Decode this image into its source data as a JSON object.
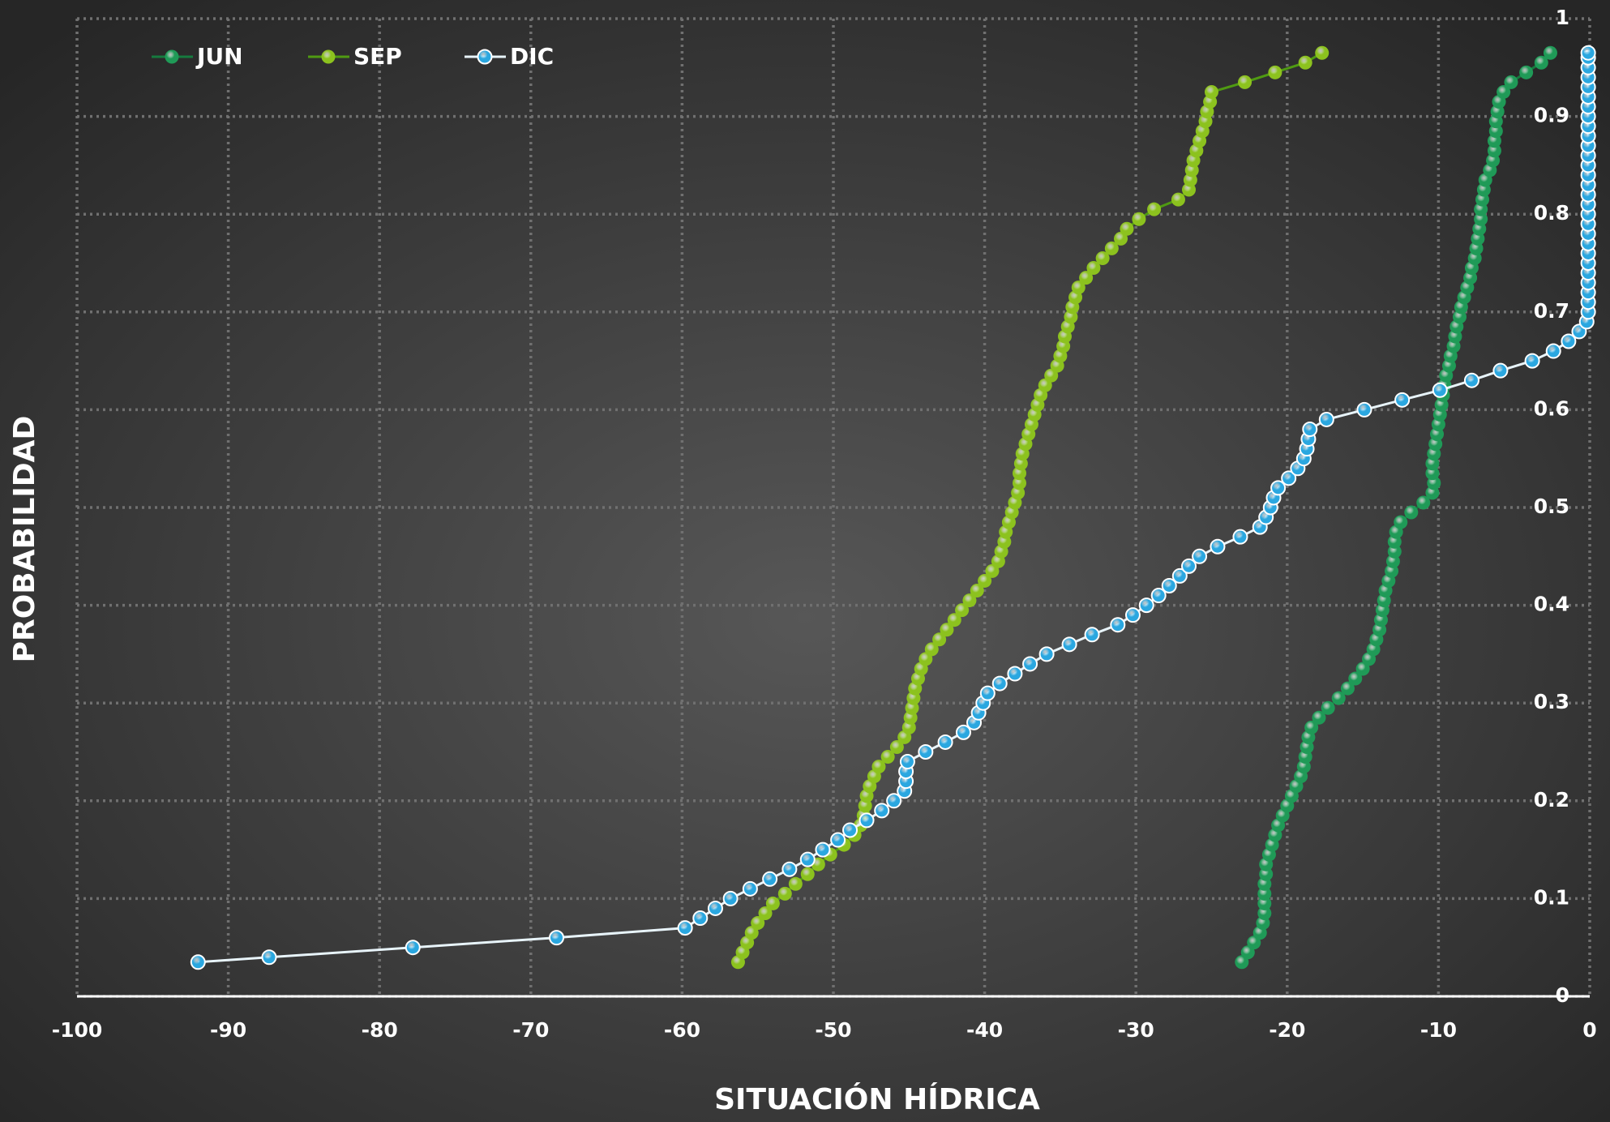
{
  "chart_data": {
    "type": "line",
    "xlabel": "SITUACIÓN HÍDRICA",
    "ylabel": "PROBABILIDAD",
    "xlim": [
      -100,
      0
    ],
    "ylim": [
      0,
      1
    ],
    "xticks": [
      -100,
      -90,
      -80,
      -70,
      -60,
      -50,
      -40,
      -30,
      -20,
      -10,
      0
    ],
    "yticks": [
      0,
      0.1,
      0.2,
      0.3,
      0.4,
      0.5,
      0.6,
      0.7,
      0.8,
      0.9,
      1
    ],
    "grid": true,
    "legend": "upper left",
    "series": [
      {
        "name": "JUN",
        "color": "#1f9a57",
        "line_color": "#167a3e",
        "x": [
          -23.0,
          -22.6,
          -22.2,
          -21.8,
          -21.6,
          -21.5,
          -21.5,
          -21.5,
          -21.5,
          -21.4,
          -21.4,
          -21.2,
          -21.0,
          -20.8,
          -20.6,
          -20.3,
          -20.0,
          -19.7,
          -19.4,
          -19.1,
          -18.9,
          -18.8,
          -18.7,
          -18.6,
          -18.4,
          -17.9,
          -17.3,
          -16.6,
          -16.0,
          -15.5,
          -15.0,
          -14.6,
          -14.3,
          -14.1,
          -13.9,
          -13.8,
          -13.7,
          -13.6,
          -13.5,
          -13.3,
          -13.1,
          -13.0,
          -12.9,
          -12.9,
          -12.8,
          -12.5,
          -11.8,
          -11.0,
          -10.4,
          -10.3,
          -10.4,
          -10.4,
          -10.3,
          -10.2,
          -10.1,
          -10.0,
          -9.9,
          -9.8,
          -9.7,
          -9.6,
          -9.5,
          -9.3,
          -9.2,
          -9.0,
          -8.9,
          -8.8,
          -8.6,
          -8.5,
          -8.3,
          -8.1,
          -7.9,
          -7.8,
          -7.6,
          -7.5,
          -7.4,
          -7.3,
          -7.2,
          -7.2,
          -7.1,
          -7.0,
          -6.9,
          -6.6,
          -6.4,
          -6.3,
          -6.3,
          -6.2,
          -6.2,
          -6.1,
          -6.0,
          -5.7,
          -5.2,
          -4.2,
          -3.2,
          -2.6
        ],
        "values": [
          0.035,
          0.045,
          0.055,
          0.065,
          0.075,
          0.085,
          0.095,
          0.105,
          0.115,
          0.125,
          0.135,
          0.145,
          0.155,
          0.165,
          0.175,
          0.185,
          0.195,
          0.205,
          0.215,
          0.225,
          0.235,
          0.245,
          0.255,
          0.265,
          0.275,
          0.285,
          0.295,
          0.305,
          0.315,
          0.325,
          0.335,
          0.345,
          0.355,
          0.365,
          0.375,
          0.385,
          0.395,
          0.405,
          0.415,
          0.425,
          0.435,
          0.445,
          0.455,
          0.465,
          0.475,
          0.485,
          0.495,
          0.505,
          0.515,
          0.525,
          0.535,
          0.545,
          0.555,
          0.565,
          0.575,
          0.585,
          0.595,
          0.605,
          0.615,
          0.625,
          0.635,
          0.645,
          0.655,
          0.665,
          0.675,
          0.685,
          0.695,
          0.705,
          0.715,
          0.725,
          0.735,
          0.745,
          0.755,
          0.765,
          0.775,
          0.785,
          0.795,
          0.805,
          0.815,
          0.825,
          0.835,
          0.845,
          0.855,
          0.865,
          0.875,
          0.885,
          0.895,
          0.905,
          0.915,
          0.925,
          0.935,
          0.945,
          0.955,
          0.965
        ]
      },
      {
        "name": "SEP",
        "color": "#8cc21e",
        "line_color": "#4f9a12",
        "x": [
          -56.3,
          -56.0,
          -55.7,
          -55.4,
          -55.0,
          -54.5,
          -54.0,
          -53.2,
          -52.5,
          -51.7,
          -51.0,
          -50.2,
          -49.3,
          -48.6,
          -48.2,
          -48.0,
          -47.9,
          -47.8,
          -47.6,
          -47.3,
          -47.0,
          -46.4,
          -45.8,
          -45.3,
          -45.0,
          -44.9,
          -44.8,
          -44.7,
          -44.6,
          -44.4,
          -44.2,
          -43.9,
          -43.5,
          -43.0,
          -42.5,
          -42.0,
          -41.5,
          -41.0,
          -40.5,
          -40.0,
          -39.5,
          -39.1,
          -38.9,
          -38.7,
          -38.6,
          -38.4,
          -38.2,
          -38.0,
          -37.8,
          -37.7,
          -37.7,
          -37.6,
          -37.5,
          -37.3,
          -37.1,
          -36.9,
          -36.7,
          -36.5,
          -36.3,
          -36.0,
          -35.6,
          -35.2,
          -35.0,
          -34.8,
          -34.7,
          -34.5,
          -34.3,
          -34.2,
          -34.0,
          -33.8,
          -33.3,
          -32.8,
          -32.2,
          -31.6,
          -31.0,
          -30.6,
          -29.8,
          -28.8,
          -27.2,
          -26.5,
          -26.4,
          -26.3,
          -26.2,
          -26.0,
          -25.8,
          -25.6,
          -25.4,
          -25.3,
          -25.1,
          -25.0,
          -22.8,
          -20.8,
          -18.8,
          -17.7
        ],
        "values": [
          0.035,
          0.045,
          0.055,
          0.065,
          0.075,
          0.085,
          0.095,
          0.105,
          0.115,
          0.125,
          0.135,
          0.145,
          0.155,
          0.165,
          0.175,
          0.185,
          0.195,
          0.205,
          0.215,
          0.225,
          0.235,
          0.245,
          0.255,
          0.265,
          0.275,
          0.285,
          0.295,
          0.305,
          0.315,
          0.325,
          0.335,
          0.345,
          0.355,
          0.365,
          0.375,
          0.385,
          0.395,
          0.405,
          0.415,
          0.425,
          0.435,
          0.445,
          0.455,
          0.465,
          0.475,
          0.485,
          0.495,
          0.505,
          0.515,
          0.525,
          0.535,
          0.545,
          0.555,
          0.565,
          0.575,
          0.585,
          0.595,
          0.605,
          0.615,
          0.625,
          0.635,
          0.645,
          0.655,
          0.665,
          0.675,
          0.685,
          0.695,
          0.705,
          0.715,
          0.725,
          0.735,
          0.745,
          0.755,
          0.765,
          0.775,
          0.785,
          0.795,
          0.805,
          0.815,
          0.825,
          0.835,
          0.845,
          0.855,
          0.865,
          0.875,
          0.885,
          0.895,
          0.905,
          0.915,
          0.925,
          0.935,
          0.945,
          0.955,
          0.965
        ]
      },
      {
        "name": "DIC",
        "color": "#2aa7e0",
        "line_color": "#e8f4fa",
        "x": [
          -92.0,
          -87.3,
          -77.8,
          -68.3,
          -59.8,
          -58.8,
          -57.8,
          -56.8,
          -55.5,
          -54.2,
          -52.9,
          -51.7,
          -50.7,
          -49.7,
          -48.9,
          -47.8,
          -46.8,
          -46.0,
          -45.3,
          -45.2,
          -45.2,
          -45.1,
          -43.9,
          -42.6,
          -41.4,
          -40.7,
          -40.4,
          -40.1,
          -39.8,
          -39.0,
          -38.0,
          -37.0,
          -35.9,
          -34.4,
          -32.9,
          -31.2,
          -30.2,
          -29.3,
          -28.5,
          -27.8,
          -27.1,
          -26.5,
          -25.8,
          -24.6,
          -23.1,
          -21.8,
          -21.4,
          -21.1,
          -20.9,
          -20.6,
          -19.9,
          -19.3,
          -18.9,
          -18.7,
          -18.6,
          -18.5,
          -17.4,
          -14.9,
          -12.4,
          -9.9,
          -7.8,
          -5.9,
          -3.8,
          -2.4,
          -1.4,
          -0.7,
          -0.2,
          -0.1,
          -0.1,
          -0.1,
          -0.1,
          -0.1,
          -0.1,
          -0.1,
          -0.1,
          -0.1,
          -0.1,
          -0.1,
          -0.1,
          -0.1,
          -0.1,
          -0.1,
          -0.1,
          -0.1,
          -0.1,
          -0.1,
          -0.1,
          -0.1,
          -0.1,
          -0.1,
          -0.1,
          -0.1,
          -0.1,
          -0.1,
          -0.1
        ],
        "values": [
          0.035,
          0.04,
          0.05,
          0.06,
          0.07,
          0.08,
          0.09,
          0.1,
          0.11,
          0.12,
          0.13,
          0.14,
          0.15,
          0.16,
          0.17,
          0.18,
          0.19,
          0.2,
          0.21,
          0.22,
          0.23,
          0.24,
          0.25,
          0.26,
          0.27,
          0.28,
          0.29,
          0.3,
          0.31,
          0.32,
          0.33,
          0.34,
          0.35,
          0.36,
          0.37,
          0.38,
          0.39,
          0.4,
          0.41,
          0.42,
          0.43,
          0.44,
          0.45,
          0.46,
          0.47,
          0.48,
          0.49,
          0.5,
          0.51,
          0.52,
          0.53,
          0.54,
          0.55,
          0.56,
          0.57,
          0.58,
          0.59,
          0.6,
          0.61,
          0.62,
          0.63,
          0.64,
          0.65,
          0.66,
          0.67,
          0.68,
          0.69,
          0.7,
          0.71,
          0.72,
          0.73,
          0.74,
          0.75,
          0.76,
          0.77,
          0.78,
          0.79,
          0.8,
          0.81,
          0.82,
          0.83,
          0.84,
          0.85,
          0.86,
          0.87,
          0.88,
          0.89,
          0.9,
          0.91,
          0.92,
          0.93,
          0.94,
          0.95,
          0.96,
          0.965
        ]
      }
    ]
  }
}
